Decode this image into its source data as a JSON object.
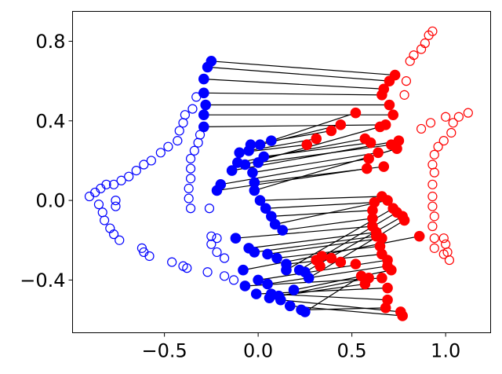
{
  "chart_data": {
    "type": "scatter",
    "title": "",
    "xlabel": "",
    "ylabel": "",
    "xlim": [
      -0.99,
      1.24
    ],
    "ylim": [
      -0.665,
      0.95
    ],
    "xticks": [
      -0.5,
      0.0,
      0.5,
      1.0
    ],
    "xtick_labels": [
      "−0.5",
      "0.0",
      "0.5",
      "1.0"
    ],
    "yticks": [
      -0.4,
      0.0,
      0.4,
      0.8
    ],
    "ytick_labels": [
      "−0.4",
      "0.0",
      "0.4",
      "0.8"
    ],
    "grid": false,
    "legend": "none",
    "colors": {
      "blue": "#0000ff",
      "red": "#ff0000",
      "line": "#000000"
    },
    "series": [
      {
        "marker": "open-circle",
        "color": "#0000ff",
        "points": [
          [
            -0.9,
            0.02
          ],
          [
            -0.87,
            0.04
          ],
          [
            -0.84,
            0.06
          ],
          [
            -0.81,
            0.08
          ],
          [
            -0.77,
            0.08
          ],
          [
            -0.73,
            0.1
          ],
          [
            -0.69,
            0.12
          ],
          [
            -0.65,
            0.15
          ],
          [
            -0.61,
            0.18
          ],
          [
            -0.57,
            0.2
          ],
          [
            -0.52,
            0.24
          ],
          [
            -0.48,
            0.27
          ],
          [
            -0.43,
            0.3
          ],
          [
            -0.42,
            0.35
          ],
          [
            -0.4,
            0.39
          ],
          [
            -0.39,
            0.43
          ],
          [
            -0.35,
            0.46
          ],
          [
            -0.33,
            0.52
          ],
          [
            -0.26,
            -0.04
          ],
          [
            -0.36,
            -0.04
          ],
          [
            -0.37,
            0.01
          ],
          [
            -0.37,
            0.06
          ],
          [
            -0.36,
            0.11
          ],
          [
            -0.36,
            0.16
          ],
          [
            -0.36,
            0.21
          ],
          [
            -0.34,
            0.25
          ],
          [
            -0.32,
            0.29
          ],
          [
            -0.31,
            0.33
          ],
          [
            -0.85,
            -0.02
          ],
          [
            -0.83,
            -0.06
          ],
          [
            -0.82,
            -0.1
          ],
          [
            -0.79,
            -0.14
          ],
          [
            -0.77,
            -0.17
          ],
          [
            -0.74,
            -0.2
          ],
          [
            -0.62,
            -0.24
          ],
          [
            -0.61,
            -0.26
          ],
          [
            -0.58,
            -0.28
          ],
          [
            -0.46,
            -0.31
          ],
          [
            -0.4,
            -0.33
          ],
          [
            -0.38,
            -0.34
          ],
          [
            -0.27,
            -0.36
          ],
          [
            -0.18,
            -0.38
          ],
          [
            -0.13,
            -0.4
          ],
          [
            -0.76,
            -0.03
          ],
          [
            -0.76,
            0.0
          ],
          [
            -0.22,
            -0.19
          ],
          [
            -0.25,
            -0.18
          ],
          [
            -0.25,
            -0.22
          ],
          [
            -0.22,
            -0.26
          ],
          [
            -0.18,
            -0.29
          ]
        ]
      },
      {
        "marker": "filled-circle",
        "color": "#0000ff",
        "points": [
          [
            -0.25,
            0.7
          ],
          [
            -0.27,
            0.67
          ],
          [
            -0.29,
            0.61
          ],
          [
            -0.29,
            0.54
          ],
          [
            -0.28,
            0.48
          ],
          [
            -0.29,
            0.43
          ],
          [
            -0.29,
            0.37
          ],
          [
            -0.1,
            0.24
          ],
          [
            -0.05,
            0.25
          ],
          [
            -0.04,
            0.28
          ],
          [
            0.01,
            0.28
          ],
          [
            0.07,
            0.3
          ],
          [
            -0.11,
            0.19
          ],
          [
            -0.14,
            0.15
          ],
          [
            -0.07,
            0.18
          ],
          [
            -0.2,
            0.08
          ],
          [
            -0.22,
            0.05
          ],
          [
            0.03,
            0.22
          ],
          [
            0.0,
            0.19
          ],
          [
            -0.03,
            0.14
          ],
          [
            -0.02,
            0.09
          ],
          [
            -0.02,
            0.05
          ],
          [
            0.01,
            0.0
          ],
          [
            0.04,
            -0.04
          ],
          [
            0.07,
            -0.08
          ],
          [
            0.09,
            -0.12
          ],
          [
            0.13,
            -0.15
          ],
          [
            -0.12,
            -0.19
          ],
          [
            -0.05,
            -0.24
          ],
          [
            -0.02,
            -0.26
          ],
          [
            0.05,
            -0.27
          ],
          [
            0.1,
            -0.29
          ],
          [
            0.15,
            -0.32
          ],
          [
            0.15,
            -0.35
          ],
          [
            0.22,
            -0.35
          ],
          [
            0.25,
            -0.36
          ],
          [
            0.27,
            -0.39
          ],
          [
            -0.08,
            -0.35
          ],
          [
            0.0,
            -0.4
          ],
          [
            0.05,
            -0.42
          ],
          [
            -0.07,
            -0.43
          ],
          [
            -0.01,
            -0.47
          ],
          [
            0.07,
            -0.47
          ],
          [
            0.12,
            -0.5
          ],
          [
            0.17,
            -0.53
          ],
          [
            0.23,
            -0.55
          ],
          [
            0.25,
            -0.56
          ],
          [
            0.06,
            -0.49
          ],
          [
            0.11,
            -0.48
          ],
          [
            0.19,
            -0.45
          ]
        ]
      },
      {
        "marker": "filled-circle",
        "color": "#ff0000",
        "points": [
          [
            0.73,
            0.63
          ],
          [
            0.7,
            0.6
          ],
          [
            0.67,
            0.56
          ],
          [
            0.66,
            0.53
          ],
          [
            0.7,
            0.48
          ],
          [
            0.72,
            0.43
          ],
          [
            0.68,
            0.38
          ],
          [
            0.52,
            0.44
          ],
          [
            0.44,
            0.38
          ],
          [
            0.39,
            0.35
          ],
          [
            0.31,
            0.31
          ],
          [
            0.26,
            0.28
          ],
          [
            0.65,
            0.37
          ],
          [
            0.57,
            0.31
          ],
          [
            0.6,
            0.29
          ],
          [
            0.71,
            0.28
          ],
          [
            0.75,
            0.3
          ],
          [
            0.64,
            0.24
          ],
          [
            0.59,
            0.21
          ],
          [
            0.58,
            0.16
          ],
          [
            0.67,
            0.17
          ],
          [
            0.74,
            0.26
          ],
          [
            0.66,
            0.02
          ],
          [
            0.62,
            -0.01
          ],
          [
            0.61,
            -0.05
          ],
          [
            0.69,
            0.0
          ],
          [
            0.61,
            -0.09
          ],
          [
            0.61,
            -0.13
          ],
          [
            0.63,
            -0.16
          ],
          [
            0.63,
            -0.18
          ],
          [
            0.66,
            -0.19
          ],
          [
            0.65,
            -0.23
          ],
          [
            0.66,
            -0.27
          ],
          [
            0.72,
            -0.04
          ],
          [
            0.74,
            -0.06
          ],
          [
            0.77,
            -0.08
          ],
          [
            0.78,
            -0.1
          ],
          [
            0.86,
            -0.18
          ],
          [
            0.69,
            -0.3
          ],
          [
            0.69,
            -0.33
          ],
          [
            0.66,
            -0.39
          ],
          [
            0.69,
            -0.44
          ],
          [
            0.69,
            -0.5
          ],
          [
            0.76,
            -0.56
          ],
          [
            0.77,
            -0.58
          ],
          [
            0.68,
            -0.54
          ],
          [
            0.55,
            -0.38
          ],
          [
            0.59,
            -0.39
          ],
          [
            0.57,
            -0.42
          ],
          [
            0.52,
            -0.32
          ],
          [
            0.44,
            -0.31
          ],
          [
            0.39,
            -0.29
          ],
          [
            0.34,
            -0.28
          ],
          [
            0.31,
            -0.3
          ],
          [
            0.33,
            -0.33
          ],
          [
            0.71,
            -0.35
          ]
        ]
      },
      {
        "marker": "open-circle",
        "color": "#ff0000",
        "points": [
          [
            0.93,
            0.85
          ],
          [
            0.91,
            0.83
          ],
          [
            0.89,
            0.79
          ],
          [
            0.87,
            0.76
          ],
          [
            0.83,
            0.73
          ],
          [
            0.81,
            0.7
          ],
          [
            0.79,
            0.6
          ],
          [
            0.78,
            0.53
          ],
          [
            0.87,
            0.36
          ],
          [
            0.92,
            0.39
          ],
          [
            1.0,
            0.42
          ],
          [
            1.04,
            0.39
          ],
          [
            1.07,
            0.42
          ],
          [
            1.12,
            0.44
          ],
          [
            1.03,
            0.34
          ],
          [
            0.99,
            0.3
          ],
          [
            0.96,
            0.27
          ],
          [
            0.94,
            0.23
          ],
          [
            0.93,
            0.18
          ],
          [
            0.94,
            0.14
          ],
          [
            0.93,
            0.08
          ],
          [
            0.93,
            0.02
          ],
          [
            0.93,
            -0.03
          ],
          [
            0.94,
            -0.08
          ],
          [
            0.93,
            -0.13
          ],
          [
            0.94,
            -0.19
          ],
          [
            0.94,
            -0.24
          ],
          [
            0.99,
            -0.19
          ],
          [
            1.0,
            -0.22
          ],
          [
            1.01,
            -0.26
          ],
          [
            0.99,
            -0.27
          ],
          [
            1.02,
            -0.3
          ]
        ]
      }
    ],
    "connections": [
      [
        [
          -0.25,
          0.7
        ],
        [
          0.73,
          0.63
        ]
      ],
      [
        [
          -0.27,
          0.67
        ],
        [
          0.7,
          0.6
        ]
      ],
      [
        [
          -0.29,
          0.61
        ],
        [
          0.67,
          0.56
        ]
      ],
      [
        [
          -0.29,
          0.54
        ],
        [
          0.66,
          0.53
        ]
      ],
      [
        [
          -0.28,
          0.48
        ],
        [
          0.7,
          0.48
        ]
      ],
      [
        [
          -0.29,
          0.43
        ],
        [
          0.72,
          0.43
        ]
      ],
      [
        [
          -0.29,
          0.37
        ],
        [
          0.68,
          0.38
        ]
      ],
      [
        [
          0.07,
          0.3
        ],
        [
          0.52,
          0.44
        ]
      ],
      [
        [
          0.01,
          0.28
        ],
        [
          0.44,
          0.38
        ]
      ],
      [
        [
          -0.04,
          0.28
        ],
        [
          0.39,
          0.35
        ]
      ],
      [
        [
          -0.05,
          0.25
        ],
        [
          0.31,
          0.31
        ]
      ],
      [
        [
          -0.1,
          0.24
        ],
        [
          0.26,
          0.28
        ]
      ],
      [
        [
          -0.07,
          0.18
        ],
        [
          0.65,
          0.37
        ]
      ],
      [
        [
          -0.11,
          0.19
        ],
        [
          0.57,
          0.31
        ]
      ],
      [
        [
          0.03,
          0.22
        ],
        [
          0.6,
          0.29
        ]
      ],
      [
        [
          0.0,
          0.19
        ],
        [
          0.71,
          0.28
        ]
      ],
      [
        [
          -0.14,
          0.15
        ],
        [
          0.75,
          0.3
        ]
      ],
      [
        [
          -0.03,
          0.14
        ],
        [
          0.64,
          0.24
        ]
      ],
      [
        [
          -0.2,
          0.08
        ],
        [
          0.59,
          0.21
        ]
      ],
      [
        [
          -0.22,
          0.05
        ],
        [
          0.58,
          0.16
        ]
      ],
      [
        [
          -0.02,
          0.09
        ],
        [
          0.67,
          0.17
        ]
      ],
      [
        [
          -0.02,
          0.05
        ],
        [
          0.74,
          0.26
        ]
      ],
      [
        [
          0.01,
          0.0
        ],
        [
          0.66,
          0.02
        ]
      ],
      [
        [
          0.04,
          -0.04
        ],
        [
          0.62,
          -0.01
        ]
      ],
      [
        [
          0.07,
          -0.08
        ],
        [
          0.61,
          -0.05
        ]
      ],
      [
        [
          0.09,
          -0.12
        ],
        [
          0.69,
          0.0
        ]
      ],
      [
        [
          0.13,
          -0.15
        ],
        [
          0.61,
          -0.09
        ]
      ],
      [
        [
          -0.12,
          -0.19
        ],
        [
          0.61,
          -0.13
        ]
      ],
      [
        [
          -0.05,
          -0.24
        ],
        [
          0.63,
          -0.16
        ]
      ],
      [
        [
          -0.02,
          -0.26
        ],
        [
          0.63,
          -0.18
        ]
      ],
      [
        [
          0.05,
          -0.27
        ],
        [
          0.66,
          -0.19
        ]
      ],
      [
        [
          0.1,
          -0.29
        ],
        [
          0.65,
          -0.23
        ]
      ],
      [
        [
          0.15,
          -0.32
        ],
        [
          0.66,
          -0.27
        ]
      ],
      [
        [
          0.15,
          -0.35
        ],
        [
          0.72,
          -0.04
        ]
      ],
      [
        [
          0.22,
          -0.35
        ],
        [
          0.74,
          -0.06
        ]
      ],
      [
        [
          0.25,
          -0.36
        ],
        [
          0.77,
          -0.08
        ]
      ],
      [
        [
          0.27,
          -0.39
        ],
        [
          0.78,
          -0.1
        ]
      ],
      [
        [
          -0.08,
          -0.35
        ],
        [
          0.86,
          -0.18
        ]
      ],
      [
        [
          0.0,
          -0.4
        ],
        [
          0.69,
          -0.3
        ]
      ],
      [
        [
          0.05,
          -0.42
        ],
        [
          0.69,
          -0.33
        ]
      ],
      [
        [
          -0.07,
          -0.43
        ],
        [
          0.66,
          -0.39
        ]
      ],
      [
        [
          -0.01,
          -0.47
        ],
        [
          0.69,
          -0.44
        ]
      ],
      [
        [
          0.07,
          -0.47
        ],
        [
          0.69,
          -0.5
        ]
      ],
      [
        [
          0.12,
          -0.5
        ],
        [
          0.76,
          -0.56
        ]
      ],
      [
        [
          0.17,
          -0.53
        ],
        [
          0.77,
          -0.58
        ]
      ],
      [
        [
          0.23,
          -0.55
        ],
        [
          0.68,
          -0.54
        ]
      ],
      [
        [
          0.25,
          -0.56
        ],
        [
          0.55,
          -0.38
        ]
      ],
      [
        [
          0.06,
          -0.49
        ],
        [
          0.59,
          -0.39
        ]
      ],
      [
        [
          0.11,
          -0.48
        ],
        [
          0.57,
          -0.42
        ]
      ],
      [
        [
          0.19,
          -0.45
        ],
        [
          0.71,
          -0.35
        ]
      ]
    ]
  }
}
